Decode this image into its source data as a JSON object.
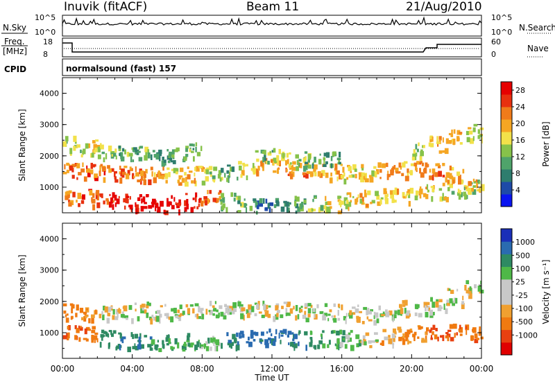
{
  "header": {
    "station": "Inuvik (fitACF)",
    "beam": "Beam 11",
    "date": "21/Aug/2010"
  },
  "top_panels": {
    "nsky_label": "N.Sky",
    "nsky_ticks": [
      "10^5",
      "10^0"
    ],
    "nsearch_label": "N.Search",
    "nsearch_ticks": [
      "10^5",
      "10^0"
    ],
    "freq_label_1": "Freq.",
    "freq_label_2": "[MHz]",
    "freq_ticks": [
      "18",
      "8"
    ],
    "nave_label": "Nave",
    "nave_ticks": [
      "60",
      "0"
    ],
    "cpid_label": "CPID",
    "cpid_text": "normalsound (fast) 157"
  },
  "colors": {
    "power": [
      "#0a14f0",
      "#1e4aa8",
      "#2e7d6e",
      "#4fa36a",
      "#86c24a",
      "#f2e14a",
      "#f5a623",
      "#f07b1a",
      "#e8300f",
      "#e60000"
    ],
    "velocity": [
      "#1a2fb8",
      "#2a6bb0",
      "#2e8a62",
      "#4fb848",
      "#c8c8c8",
      "#c8c8c8",
      "#f0a030",
      "#f07a10",
      "#e84010",
      "#e00000"
    ]
  },
  "chart_data": [
    {
      "type": "heatmap",
      "title": "Power",
      "ylabel": "Slant Range [km]",
      "xlabel": "",
      "x_ticks": [
        "00:00",
        "04:00",
        "08:00",
        "12:00",
        "16:00",
        "20:00",
        "00:00"
      ],
      "y_ticks": [
        "1000",
        "2000",
        "3000",
        "4000"
      ],
      "ylim": [
        180,
        4500
      ],
      "colorbar_label": "Power [dB]",
      "colorbar_ticks": [
        "4",
        "8",
        "12",
        "16",
        "20",
        "24",
        "28"
      ],
      "colorbar_range": [
        0,
        30
      ],
      "x_hours": [
        0.5,
        1.5,
        2.5,
        3.5,
        4.5,
        5.5,
        6.5,
        7.5,
        8.5,
        9.5,
        10.5,
        11.5,
        12.5,
        13.5,
        14.5,
        15.5,
        16.5,
        17.5,
        18.5,
        19.5,
        20.5,
        21.5,
        22.5,
        23.5
      ],
      "bands": [
        {
          "name": "near",
          "range_center_km": [
            700,
            700,
            650,
            600,
            550,
            500,
            520,
            600,
            680,
            600,
            500,
            400,
            400,
            500,
            500,
            500,
            600,
            700,
            750,
            800,
            850,
            900,
            1000,
            1000
          ],
          "power_db": [
            22,
            24,
            26,
            28,
            30,
            30,
            28,
            26,
            22,
            14,
            12,
            8,
            10,
            12,
            14,
            16,
            16,
            18,
            18,
            18,
            18,
            16,
            14,
            14
          ]
        },
        {
          "name": "one-hop",
          "range_center_km": [
            1550,
            1550,
            1500,
            1450,
            1450,
            1450,
            1400,
            1450,
            1500,
            1500,
            1600,
            1700,
            1650,
            1600,
            1600,
            1550,
            1500,
            1500,
            1550,
            1600,
            1600,
            1550,
            1450,
            1200
          ],
          "power_db": [
            22,
            24,
            24,
            22,
            22,
            20,
            18,
            18,
            14,
            10,
            16,
            20,
            22,
            22,
            20,
            18,
            18,
            18,
            20,
            20,
            22,
            22,
            20,
            18
          ]
        },
        {
          "name": "high",
          "range_center_km": [
            2400,
            2300,
            2200,
            2100,
            2100,
            2100,
            2100,
            2200,
            0,
            0,
            0,
            2000,
            2000,
            1900,
            1900,
            1900,
            0,
            0,
            0,
            0,
            2200,
            2400,
            2600,
            2800
          ],
          "power_db": [
            14,
            16,
            14,
            12,
            12,
            10,
            10,
            12,
            0,
            0,
            0,
            12,
            14,
            12,
            12,
            10,
            0,
            0,
            0,
            0,
            14,
            18,
            20,
            16
          ]
        }
      ]
    },
    {
      "type": "heatmap",
      "title": "Velocity",
      "ylabel": "Slant Range [km]",
      "xlabel": "Time UT",
      "x_ticks": [
        "00:00",
        "04:00",
        "08:00",
        "12:00",
        "16:00",
        "20:00",
        "00:00"
      ],
      "y_ticks": [
        "1000",
        "2000",
        "3000",
        "4000"
      ],
      "ylim": [
        180,
        4500
      ],
      "colorbar_label": "Velocity [m s⁻¹]",
      "colorbar_ticks": [
        "1000",
        "500",
        "100",
        "25",
        "-25",
        "-100",
        "-500",
        "-1000"
      ],
      "x_hours": [
        0.5,
        1.5,
        2.5,
        3.5,
        4.5,
        5.5,
        6.5,
        7.5,
        8.5,
        9.5,
        10.5,
        11.5,
        12.5,
        13.5,
        14.5,
        15.5,
        16.5,
        17.5,
        18.5,
        19.5,
        20.5,
        21.5,
        22.5,
        23.5
      ],
      "bands": [
        {
          "name": "near",
          "range_center_km": [
            1100,
            1000,
            900,
            800,
            750,
            700,
            700,
            750,
            800,
            800,
            850,
            900,
            900,
            850,
            850,
            850,
            850,
            850,
            900,
            950,
            1000,
            1050,
            1100,
            1050
          ],
          "velocity_ms": [
            -300,
            -250,
            150,
            200,
            200,
            150,
            100,
            80,
            50,
            200,
            300,
            300,
            300,
            250,
            150,
            80,
            50,
            0,
            -50,
            -100,
            -150,
            -300,
            -300,
            -250
          ]
        },
        {
          "name": "one-hop",
          "range_center_km": [
            1700,
            1650,
            1700,
            1700,
            1750,
            1700,
            1700,
            1750,
            1800,
            1800,
            1800,
            1800,
            1750,
            1700,
            1700,
            1700,
            1650,
            1600,
            1700,
            1800,
            1850,
            1900,
            2200,
            2500
          ],
          "velocity_ms": [
            -150,
            -100,
            0,
            0,
            0,
            0,
            0,
            10,
            0,
            0,
            0,
            0,
            0,
            0,
            0,
            0,
            0,
            0,
            0,
            0,
            0,
            0,
            0,
            0
          ]
        }
      ]
    }
  ]
}
